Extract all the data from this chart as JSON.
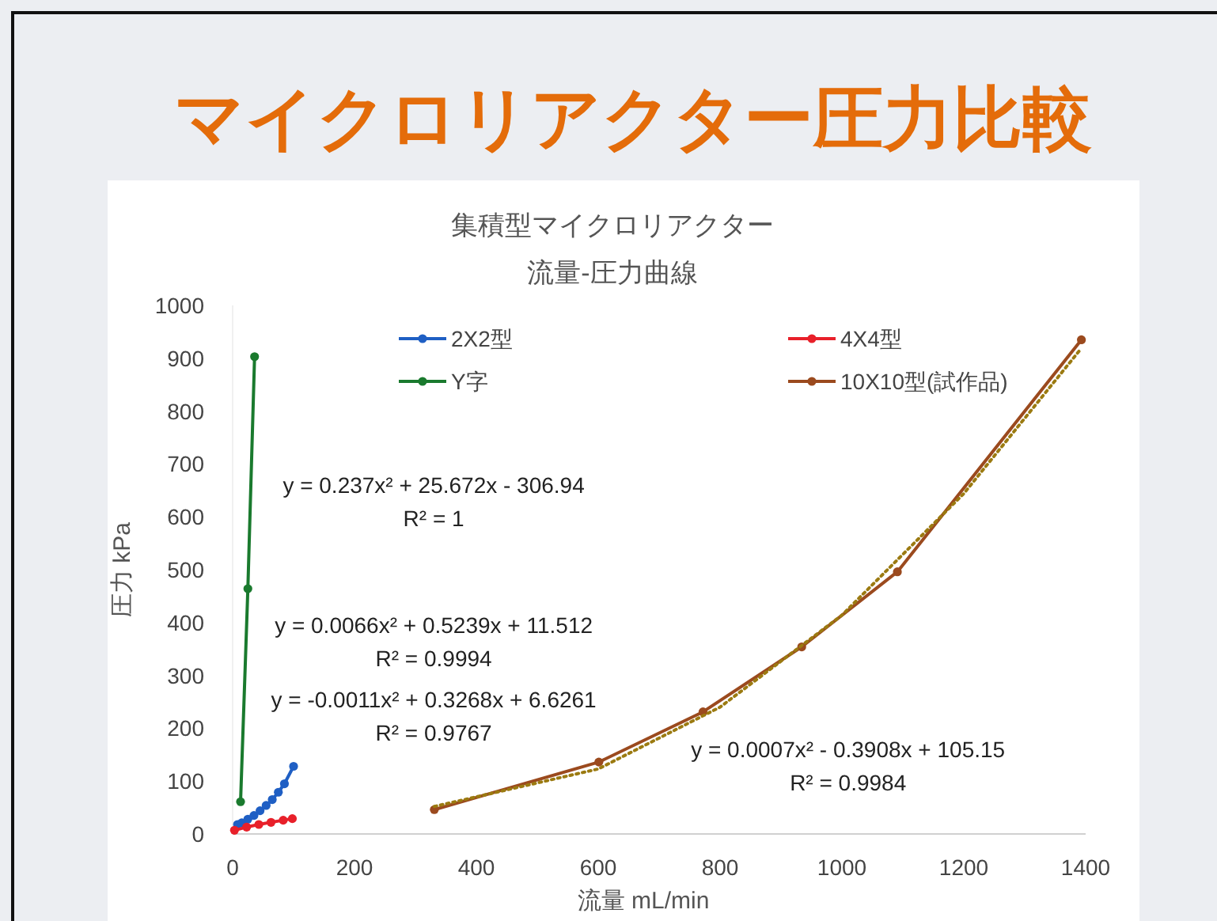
{
  "chart_data": {
    "type": "line",
    "title": "マイクロリアクター圧力比較",
    "subtitle": "集積型マイクロリアクター流量-圧力曲線",
    "xlabel": "流量 mL/min",
    "ylabel": "圧力 kPa",
    "xlim": [
      0,
      1400
    ],
    "xticks": [
      0,
      200,
      400,
      600,
      800,
      1000,
      1200,
      1400
    ],
    "ylim": [
      0,
      1000
    ],
    "yticks": [
      0,
      100,
      200,
      300,
      400,
      500,
      600,
      700,
      800,
      900,
      1000
    ],
    "marker": "circle",
    "legend": "top",
    "grid": false,
    "series": [
      {
        "name": "2X2型",
        "color": "#1f5fc4",
        "x": [
          8,
          15,
          25,
          35,
          45,
          55,
          65,
          75,
          85,
          100
        ],
        "values": [
          18,
          21,
          28,
          35,
          44,
          54,
          65,
          79,
          95,
          128
        ]
      },
      {
        "name": "4X4型",
        "color": "#e8202a",
        "x": [
          3,
          23,
          43,
          63,
          83,
          98
        ],
        "values": [
          7,
          13,
          18,
          22,
          26,
          29
        ]
      },
      {
        "name": "Y字",
        "color": "#1a7a2e",
        "x": [
          13,
          25,
          36
        ],
        "values": [
          61,
          464,
          903
        ]
      },
      {
        "name": "10X10型(試作品)",
        "color": "#9b4a1e",
        "x": [
          331,
          601,
          772,
          934,
          1091,
          1393
        ],
        "values": [
          46,
          136,
          231,
          354,
          496,
          935
        ]
      },
      {
        "type": "line",
        "marker": "none",
        "line_style": "dotted",
        "color": "#9b7a10",
        "x": [
          331,
          600,
          800,
          1000,
          1200,
          1393
        ],
        "values": [
          52,
          123,
          240,
          414,
          644,
          919
        ]
      }
    ],
    "annotations": [
      "y = 0.237x² + 25.672x - 306.94\nR² = 1",
      "y = 0.0066x² + 0.5239x + 11.512\nR² = 0.9994",
      "y = -0.0011x² + 0.3268x + 6.6261\nR² = 0.9767",
      "y = 0.0007x² - 0.3908x + 105.15\nR² = 0.9984"
    ]
  }
}
